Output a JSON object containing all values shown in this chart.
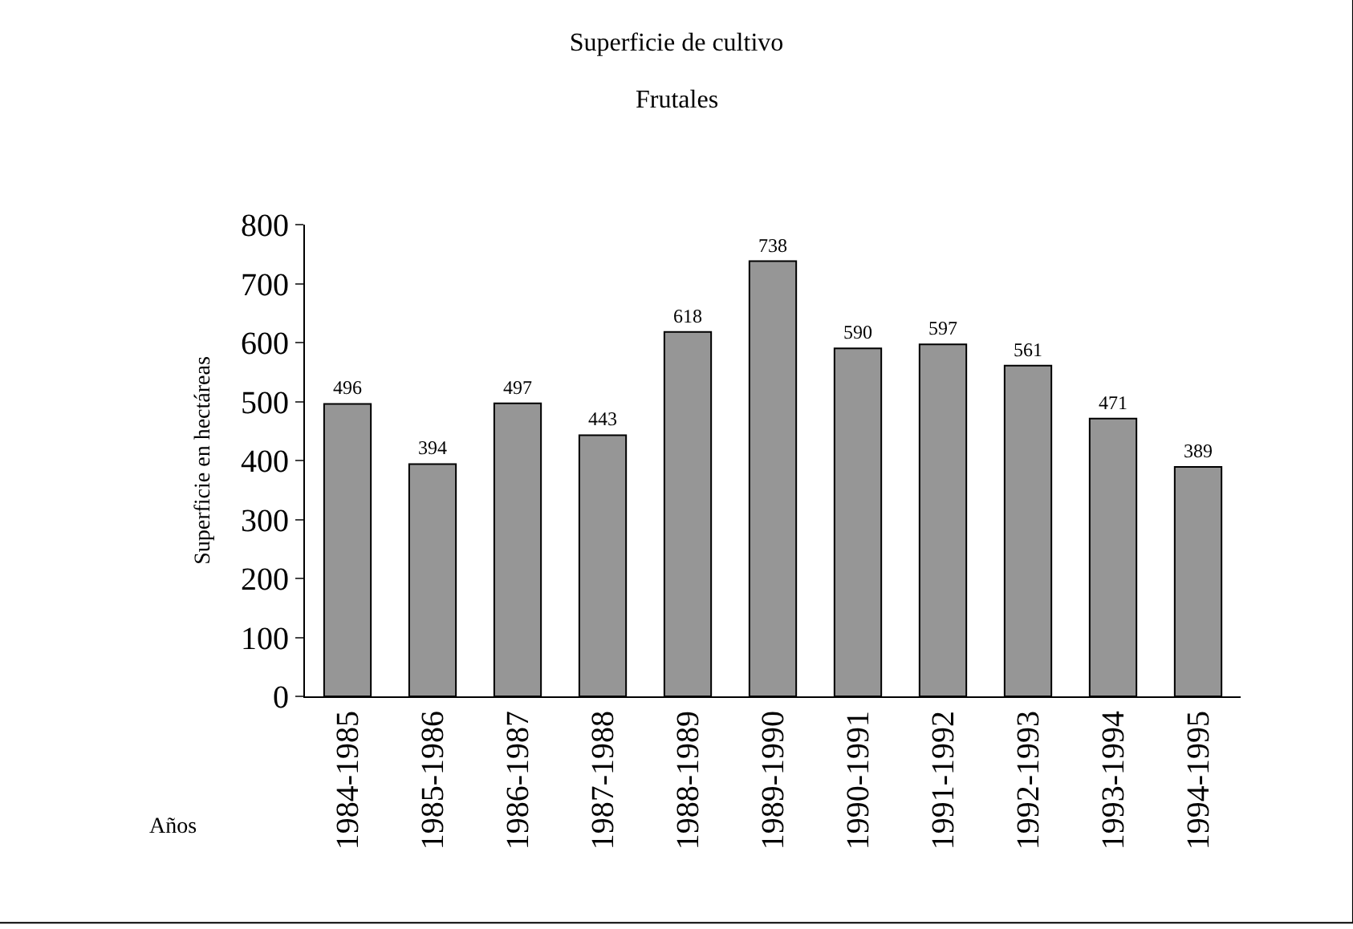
{
  "chart_data": {
    "type": "bar",
    "title": "Superficie de cultivo",
    "subtitle": "Frutales",
    "xlabel": "Años",
    "ylabel": "Superficie en hectáreas",
    "categories": [
      "1984-1985",
      "1985-1986",
      "1986-1987",
      "1987-1988",
      "1988-1989",
      "1989-1990",
      "1990-1991",
      "1991-1992",
      "1992-1993",
      "1993-1994",
      "1994-1995"
    ],
    "values": [
      496,
      394,
      497,
      443,
      618,
      738,
      590,
      597,
      561,
      471,
      389
    ],
    "color": "#969696",
    "ylim": [
      0,
      800
    ],
    "yticks": [
      0,
      100,
      200,
      300,
      400,
      500,
      600,
      700,
      800
    ],
    "data_labels": true
  }
}
